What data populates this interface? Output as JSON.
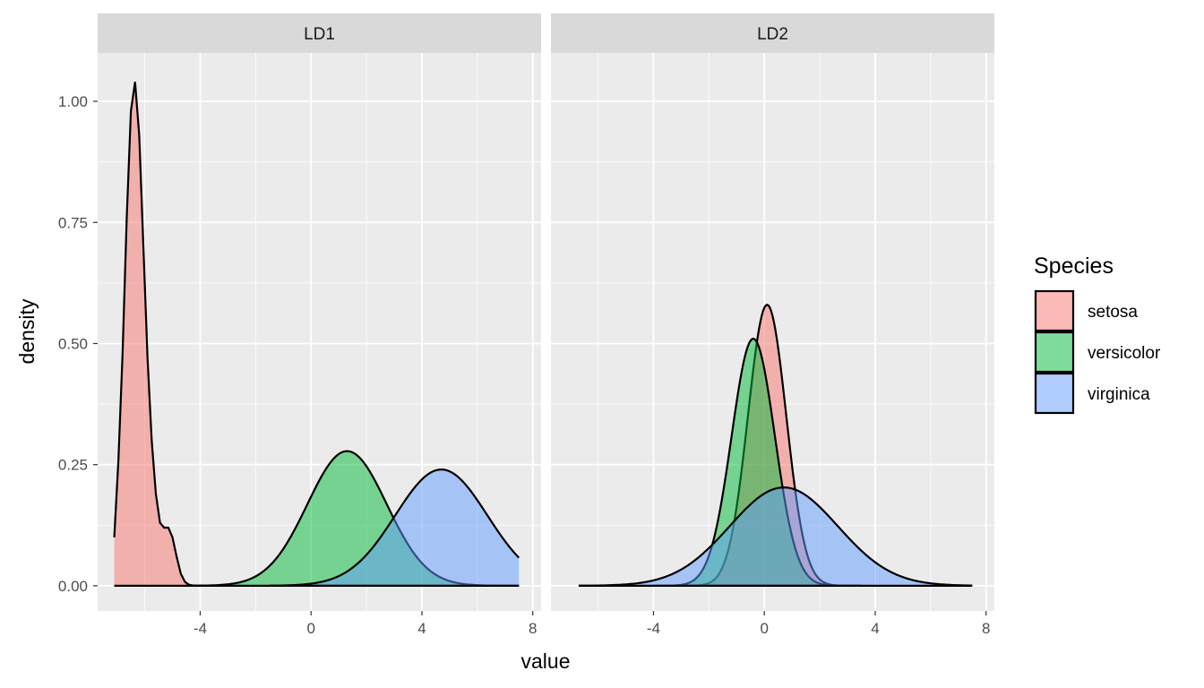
{
  "chart_data": {
    "type": "area",
    "ylabel": "density",
    "xlabel": "value",
    "facet_labels": [
      "LD1",
      "LD2"
    ],
    "x_ticks": [
      -4,
      0,
      4,
      8
    ],
    "x_tick_labels": [
      "-4",
      "0",
      "4",
      "8"
    ],
    "y_ticks": [
      0,
      0.25,
      0.5,
      0.75,
      1.0
    ],
    "y_tick_labels": [
      "0.00",
      "0.25",
      "0.50",
      "0.75",
      "1.00"
    ],
    "xlim": [
      -7.7,
      8.3
    ],
    "ylim": [
      -0.052,
      1.1
    ],
    "grid": true,
    "legend": {
      "title": "Species",
      "placement": "right",
      "entries": [
        {
          "name": "setosa",
          "color": "#F8766D"
        },
        {
          "name": "versicolor",
          "color": "#00BA38"
        },
        {
          "name": "virginica",
          "color": "#619CFF"
        }
      ]
    },
    "fill_alpha": 0.5,
    "panel_background": "#EBEBEB",
    "strip_background": "#D9D9D9",
    "panels": [
      {
        "label": "LD1",
        "series": [
          {
            "name": "setosa",
            "color": "#F8766D",
            "x": [
              -7.1,
              -6.95,
              -6.8,
              -6.65,
              -6.5,
              -6.35,
              -6.2,
              -6.05,
              -5.9,
              -5.75,
              -5.6,
              -5.45,
              -5.3,
              -5.15,
              -5.0,
              -4.85,
              -4.7,
              -4.55,
              -4.4,
              -4.25,
              -4.1,
              -3.95,
              -3.8
            ],
            "y": [
              0.1,
              0.26,
              0.48,
              0.76,
              0.98,
              1.04,
              0.93,
              0.7,
              0.47,
              0.3,
              0.19,
              0.13,
              0.12,
              0.12,
              0.1,
              0.06,
              0.025,
              0.008,
              0.002,
              0.0005,
              0.0001,
              0.0,
              0.0
            ]
          },
          {
            "name": "versicolor",
            "color": "#00BA38",
            "mean": 1.3,
            "sd": 1.43,
            "peak": 0.278,
            "xmin": -4.5,
            "xmax": 7.5
          },
          {
            "name": "virginica",
            "color": "#619CFF",
            "mean": 4.7,
            "sd": 1.66,
            "peak": 0.24,
            "xmin": -1.5,
            "xmax": 7.5
          }
        ]
      },
      {
        "label": "LD2",
        "series": [
          {
            "name": "setosa",
            "color": "#F8766D",
            "mean": 0.1,
            "sd": 0.69,
            "peak": 0.58,
            "xmin": -3.3,
            "xmax": 3.5
          },
          {
            "name": "versicolor",
            "color": "#00BA38",
            "mean": -0.4,
            "sd": 0.78,
            "peak": 0.51,
            "xmin": -4.0,
            "xmax": 3.2
          },
          {
            "name": "virginica",
            "color": "#619CFF",
            "mean": 0.7,
            "sd": 1.95,
            "peak": 0.203,
            "xmin": -6.7,
            "xmax": 7.5
          }
        ]
      }
    ]
  }
}
